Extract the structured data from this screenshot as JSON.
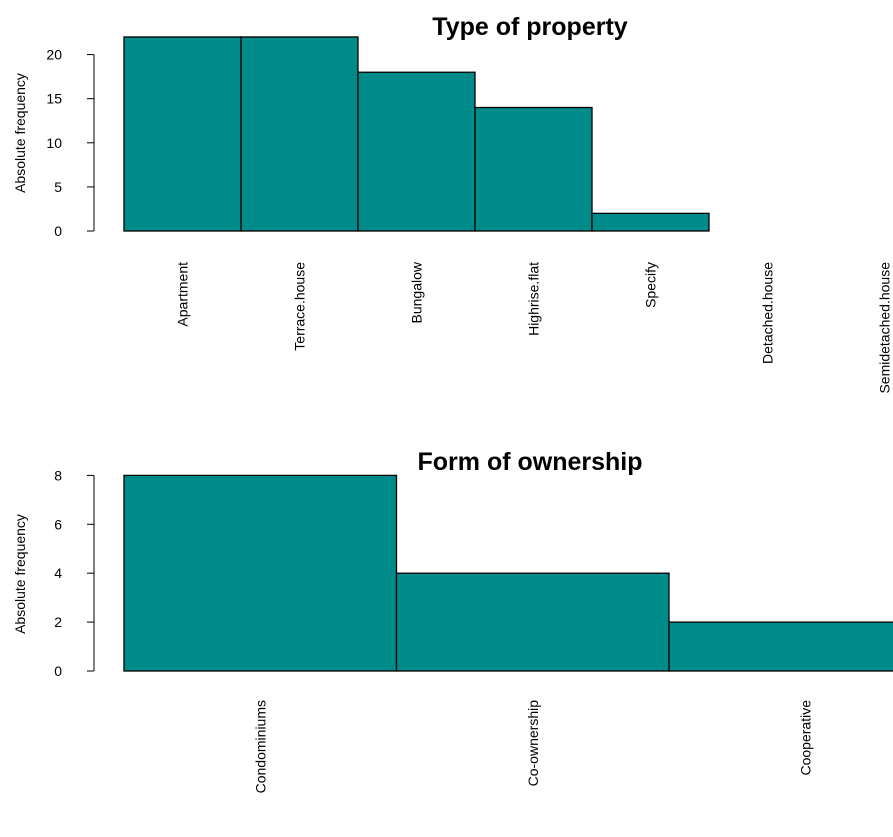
{
  "chart_data": [
    {
      "type": "bar",
      "title": "Type of property",
      "ylabel": "Absolute frequency",
      "xlabel": "",
      "categories": [
        "Apartment",
        "Terrace.house",
        "Bungalow",
        "Highrise.flat",
        "Specify",
        "Detached.house",
        "Semidetached.house"
      ],
      "values": [
        22,
        22,
        18,
        14,
        2,
        0,
        0
      ],
      "yticks": [
        0,
        5,
        10,
        15,
        20
      ],
      "ylim": [
        0,
        22
      ],
      "bar_color": "#008B8B",
      "grid": false,
      "legend": "none"
    },
    {
      "type": "bar",
      "title": "Form of ownership",
      "ylabel": "Absolute frequency",
      "xlabel": "",
      "categories": [
        "Condominiums",
        "Co-ownership",
        "Cooperative"
      ],
      "values": [
        8,
        4,
        2
      ],
      "yticks": [
        0,
        2,
        4,
        6,
        8
      ],
      "ylim": [
        0,
        8
      ],
      "bar_color": "#008B8B",
      "grid": false,
      "legend": "none"
    }
  ]
}
